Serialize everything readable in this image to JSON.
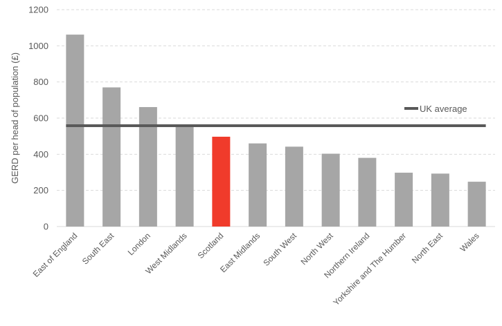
{
  "chart_data": {
    "type": "bar",
    "ylabel": "GERD per head of population (£)",
    "ylim": [
      0,
      1200
    ],
    "yticks": [
      0,
      200,
      400,
      600,
      800,
      1000,
      1200
    ],
    "grid": true,
    "legend_position": "top-right",
    "categories": [
      "East of England",
      "South East",
      "London",
      "West Midlands",
      "Scotland",
      "East Midlands",
      "South West",
      "North West",
      "Northern Ireland",
      "Yorkshire and The Humber",
      "North East",
      "Wales"
    ],
    "series": [
      {
        "values": [
          1062,
          770,
          661,
          555,
          497,
          460,
          442,
          403,
          380,
          298,
          293,
          248
        ],
        "colors": [
          "#a6a6a6",
          "#a6a6a6",
          "#a6a6a6",
          "#a6a6a6",
          "#f03b2b",
          "#a6a6a6",
          "#a6a6a6",
          "#a6a6a6",
          "#a6a6a6",
          "#a6a6a6",
          "#a6a6a6",
          "#a6a6a6"
        ]
      }
    ],
    "reference_line": {
      "name": "UK average",
      "value": 558,
      "color": "#595959"
    }
  }
}
